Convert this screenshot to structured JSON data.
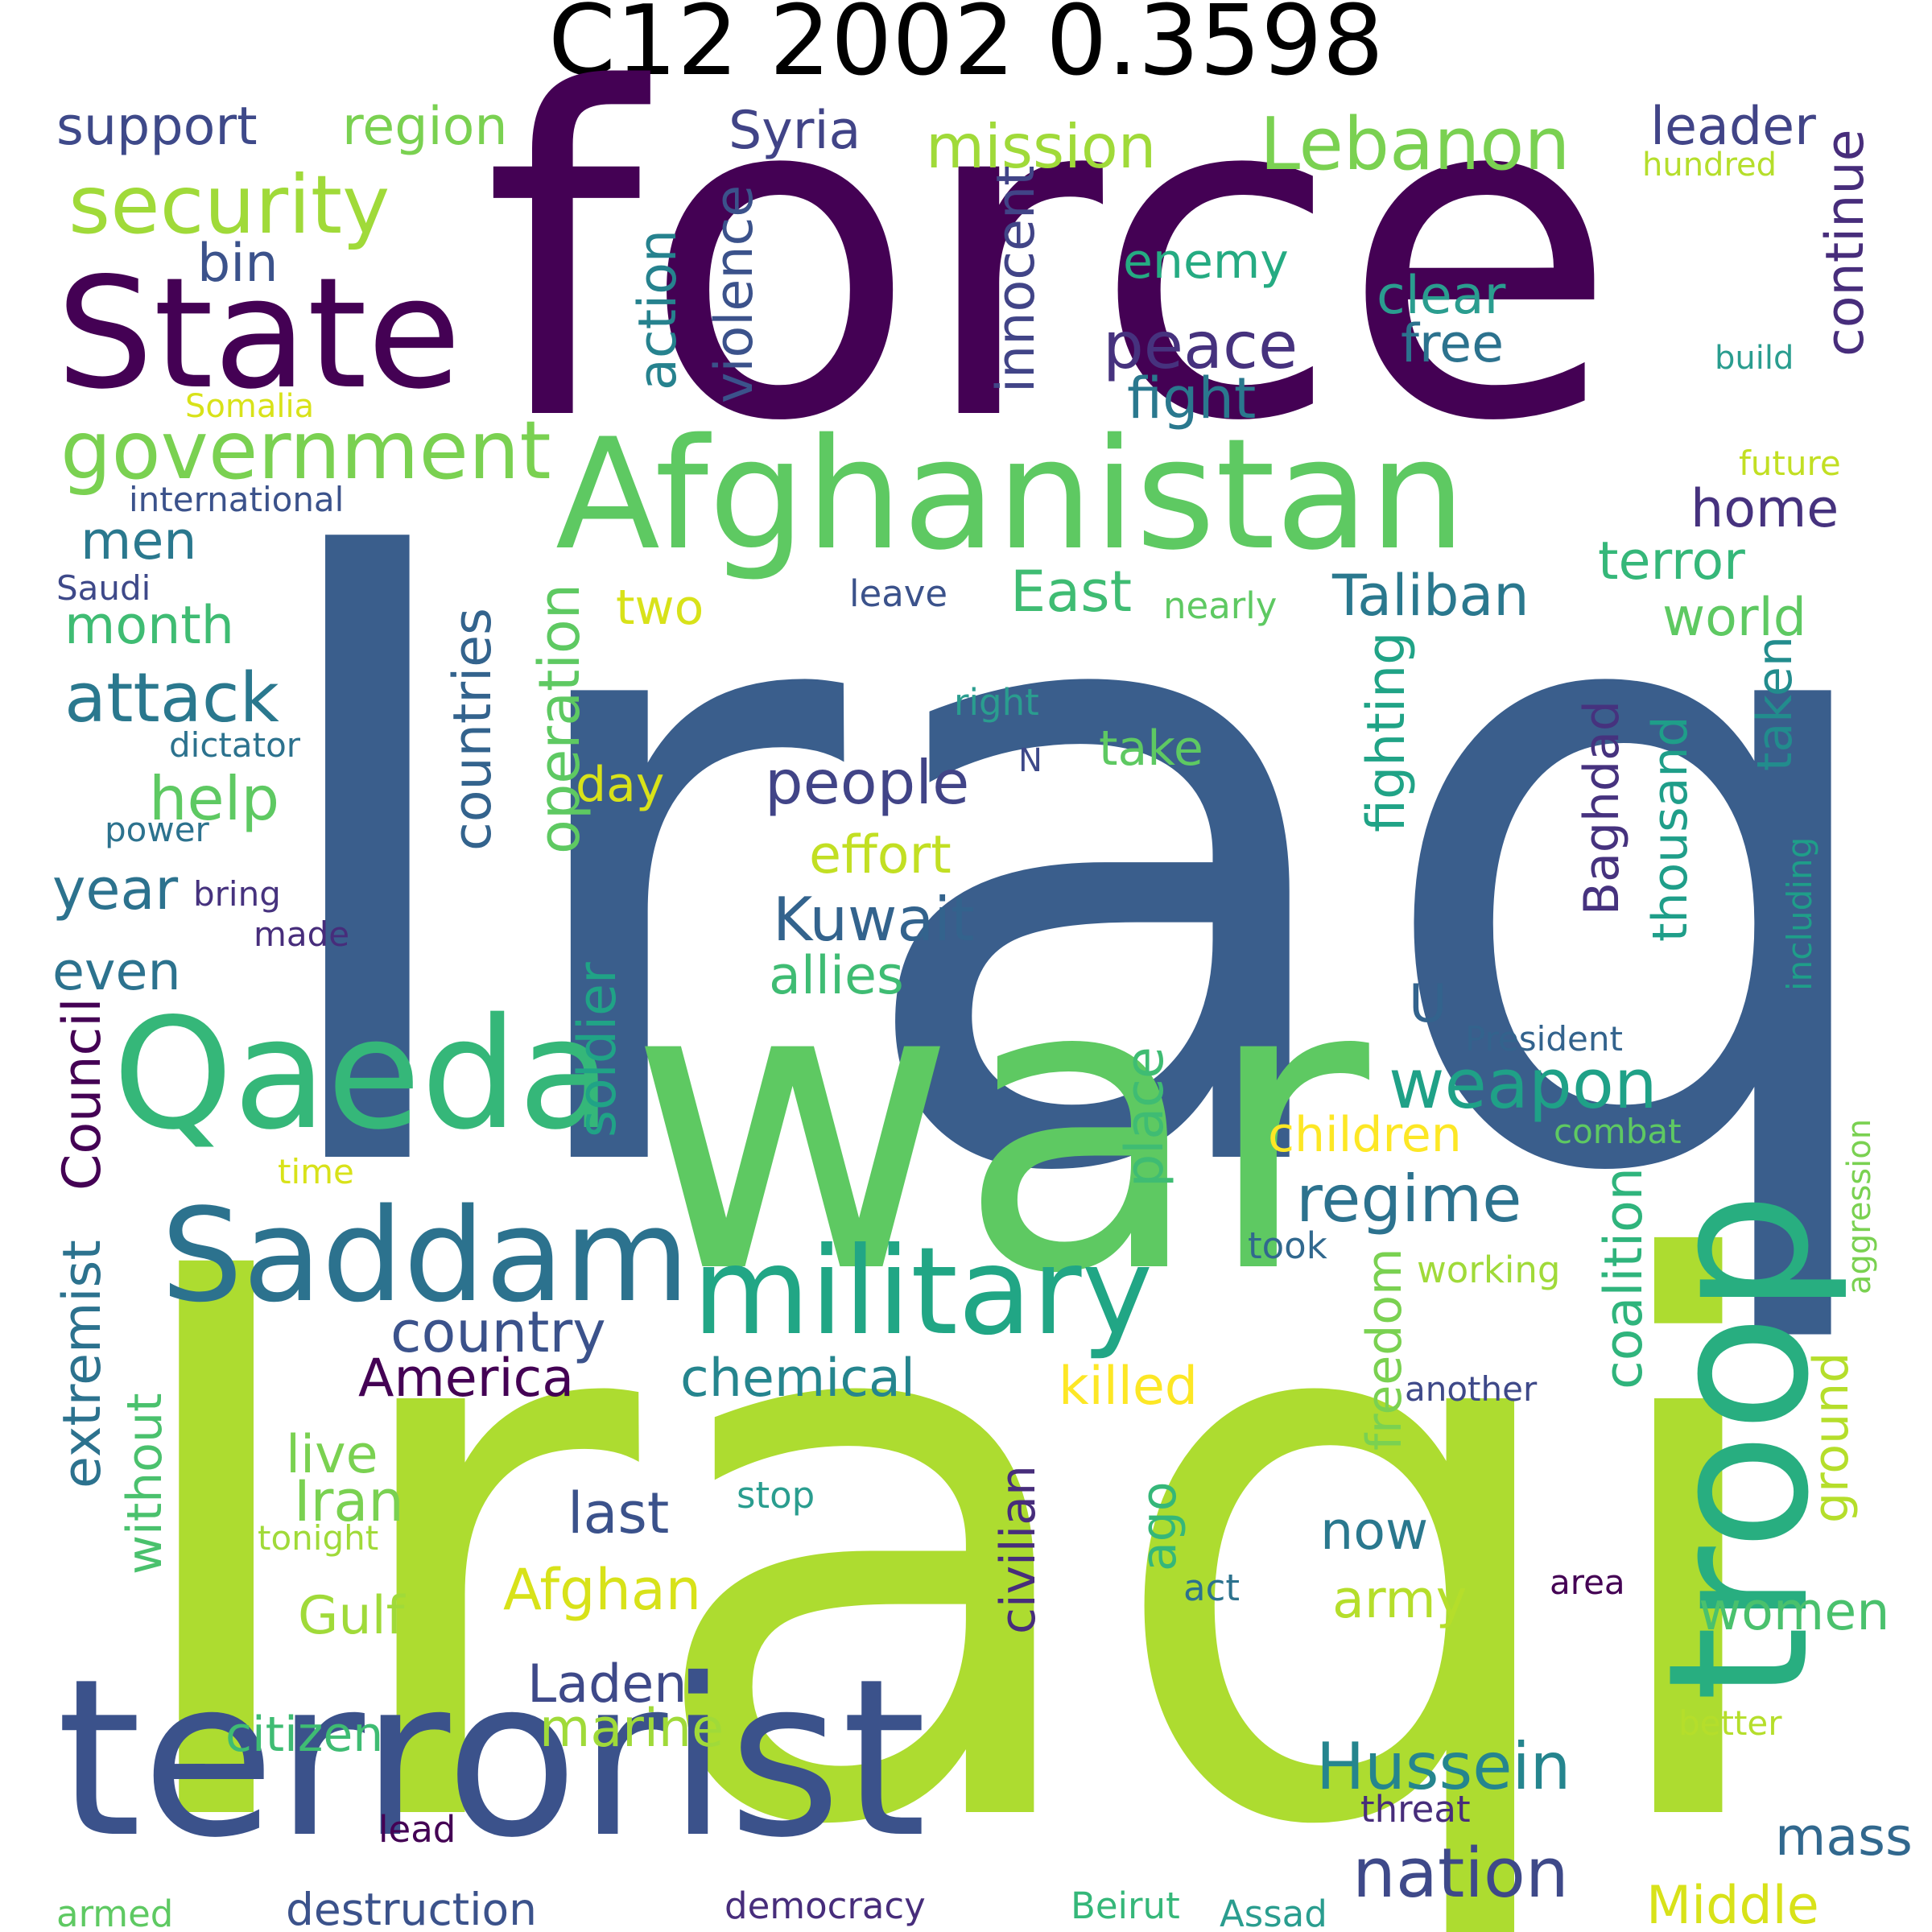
{
  "title": "C12 2002 0.3598",
  "words": [
    {
      "text": "Iraq",
      "color": "#3a5e8c"
    },
    {
      "text": "Iraqi",
      "color": "#addc30"
    },
    {
      "text": "force",
      "color": "#440154"
    },
    {
      "text": "war",
      "color": "#5ec962"
    },
    {
      "text": "terrorist",
      "color": "#3b528b"
    },
    {
      "text": "Afghanistan",
      "color": "#5ec962"
    },
    {
      "text": "troop",
      "color": "#28ae80"
    },
    {
      "text": "State",
      "color": "#440154"
    },
    {
      "text": "Qaeda",
      "color": "#35b779"
    },
    {
      "text": "Saddam",
      "color": "#2c728e"
    },
    {
      "text": "military",
      "color": "#21a685"
    },
    {
      "text": "government",
      "color": "#7ad151"
    },
    {
      "text": "security",
      "color": "#a0da39"
    },
    {
      "text": "Lebanon",
      "color": "#7ad151"
    },
    {
      "text": "support",
      "color": "#3e4989"
    },
    {
      "text": "region",
      "color": "#7ad151"
    },
    {
      "text": "Syria",
      "color": "#414487"
    },
    {
      "text": "mission",
      "color": "#a0da39"
    },
    {
      "text": "leader",
      "color": "#414487"
    },
    {
      "text": "hundred",
      "color": "#b5de2b"
    },
    {
      "text": "bin",
      "color": "#3b528b"
    },
    {
      "text": "enemy",
      "color": "#25ab82"
    },
    {
      "text": "clear",
      "color": "#2a9d8f"
    },
    {
      "text": "free",
      "color": "#2c728e"
    },
    {
      "text": "peace",
      "color": "#46327e"
    },
    {
      "text": "fight",
      "color": "#2a788e"
    },
    {
      "text": "build",
      "color": "#2a9d8f"
    },
    {
      "text": "continue",
      "color": "#472d7b"
    },
    {
      "text": "violence",
      "color": "#3b528b"
    },
    {
      "text": "action",
      "color": "#26828e"
    },
    {
      "text": "innocent",
      "color": "#414487"
    },
    {
      "text": "Somalia",
      "color": "#d8e219"
    },
    {
      "text": "international",
      "color": "#3b528b"
    },
    {
      "text": "future",
      "color": "#c2df23"
    },
    {
      "text": "men",
      "color": "#2a788e"
    },
    {
      "text": "home",
      "color": "#46327e"
    },
    {
      "text": "terror",
      "color": "#35b779"
    },
    {
      "text": "Saudi",
      "color": "#3e4989"
    },
    {
      "text": "leave",
      "color": "#3b528b"
    },
    {
      "text": "East",
      "color": "#3fbc73"
    },
    {
      "text": "nearly",
      "color": "#5ec962"
    },
    {
      "text": "Taliban",
      "color": "#2a788e"
    },
    {
      "text": "world",
      "color": "#5ec962"
    },
    {
      "text": "month",
      "color": "#3fbc73"
    },
    {
      "text": "two",
      "color": "#d8e219"
    },
    {
      "text": "attack",
      "color": "#2a788e"
    },
    {
      "text": "right",
      "color": "#2a9d8f"
    },
    {
      "text": "take",
      "color": "#5ec962"
    },
    {
      "text": "dictator",
      "color": "#2c728e"
    },
    {
      "text": "help",
      "color": "#5ec962"
    },
    {
      "text": "day",
      "color": "#d8e219"
    },
    {
      "text": "people",
      "color": "#414487"
    },
    {
      "text": "N",
      "color": "#3e4989"
    },
    {
      "text": "countries",
      "color": "#33638d"
    },
    {
      "text": "operation",
      "color": "#5ec962"
    },
    {
      "text": "fighting",
      "color": "#20a386"
    },
    {
      "text": "Baghdad",
      "color": "#46327e"
    },
    {
      "text": "thousand",
      "color": "#1f9e89"
    },
    {
      "text": "taken",
      "color": "#228c8d"
    },
    {
      "text": "power",
      "color": "#2c728e"
    },
    {
      "text": "effort",
      "color": "#c2df23"
    },
    {
      "text": "year",
      "color": "#2c728e"
    },
    {
      "text": "bring",
      "color": "#46327e"
    },
    {
      "text": "Kuwait",
      "color": "#33638d"
    },
    {
      "text": "including",
      "color": "#1f9e89"
    },
    {
      "text": "made",
      "color": "#472d7b"
    },
    {
      "text": "allies",
      "color": "#3fbc73"
    },
    {
      "text": "even",
      "color": "#2c728e"
    },
    {
      "text": "Council",
      "color": "#440154"
    },
    {
      "text": "soldier",
      "color": "#20a386"
    },
    {
      "text": "U",
      "color": "#33638d"
    },
    {
      "text": "President",
      "color": "#33638d"
    },
    {
      "text": "weapon",
      "color": "#1fa187"
    },
    {
      "text": "place",
      "color": "#3fbc73"
    },
    {
      "text": "children",
      "color": "#fde725"
    },
    {
      "text": "combat",
      "color": "#5ec962"
    },
    {
      "text": "aggression",
      "color": "#7ad151"
    },
    {
      "text": "time",
      "color": "#d8e219"
    },
    {
      "text": "regime",
      "color": "#2c728e"
    },
    {
      "text": "took",
      "color": "#31688e"
    },
    {
      "text": "working",
      "color": "#a0da39"
    },
    {
      "text": "coalition",
      "color": "#2fb47c"
    },
    {
      "text": "country",
      "color": "#3b528b"
    },
    {
      "text": "extremist",
      "color": "#2c728e"
    },
    {
      "text": "freedom",
      "color": "#7ad151"
    },
    {
      "text": "America",
      "color": "#440154"
    },
    {
      "text": "chemical",
      "color": "#25858e"
    },
    {
      "text": "killed",
      "color": "#fde725"
    },
    {
      "text": "another",
      "color": "#3e4989"
    },
    {
      "text": "ground",
      "color": "#b5de2b"
    },
    {
      "text": "without",
      "color": "#4ac16d"
    },
    {
      "text": "live",
      "color": "#7ad151"
    },
    {
      "text": "Iran",
      "color": "#7ad151"
    },
    {
      "text": "stop",
      "color": "#2a9d8f"
    },
    {
      "text": "civilian",
      "color": "#472d7b"
    },
    {
      "text": "last",
      "color": "#3b528b"
    },
    {
      "text": "ago",
      "color": "#35b779"
    },
    {
      "text": "tonight",
      "color": "#a0da39"
    },
    {
      "text": "now",
      "color": "#2a788e"
    },
    {
      "text": "act",
      "color": "#2c728e"
    },
    {
      "text": "area",
      "color": "#440154"
    },
    {
      "text": "Gulf",
      "color": "#a0da39"
    },
    {
      "text": "Afghan",
      "color": "#d8e219"
    },
    {
      "text": "army",
      "color": "#b5de2b"
    },
    {
      "text": "women",
      "color": "#4ac16d"
    },
    {
      "text": "Laden",
      "color": "#3e4989"
    },
    {
      "text": "citizen",
      "color": "#3fbc73"
    },
    {
      "text": "marine",
      "color": "#a0da39"
    },
    {
      "text": "Hussein",
      "color": "#25858e"
    },
    {
      "text": "better",
      "color": "#b5de2b"
    },
    {
      "text": "nation",
      "color": "#3e4989"
    },
    {
      "text": "threat",
      "color": "#472d7b"
    },
    {
      "text": "mass",
      "color": "#31688e"
    },
    {
      "text": "lead",
      "color": "#440154"
    },
    {
      "text": "Middle",
      "color": "#d8e219"
    },
    {
      "text": "armed",
      "color": "#5ec962"
    },
    {
      "text": "destruction",
      "color": "#3b528b"
    },
    {
      "text": "democracy",
      "color": "#472d7b"
    },
    {
      "text": "Beirut",
      "color": "#35b779"
    },
    {
      "text": "Assad",
      "color": "#2a9d8f"
    }
  ]
}
